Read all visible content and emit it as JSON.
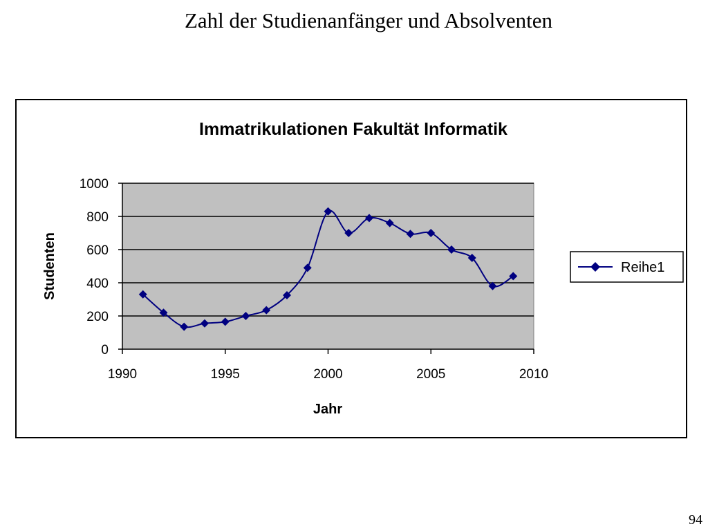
{
  "slide": {
    "title": "Zahl der Studienanfänger und Absolventen",
    "page_number": "94"
  },
  "chart_data": {
    "type": "line",
    "title": "Immatrikulationen Fakultät Informatik",
    "xlabel": "Jahr",
    "ylabel": "Studenten",
    "xlim": [
      1990,
      2010
    ],
    "ylim": [
      0,
      1000
    ],
    "x_ticks": [
      1990,
      1995,
      2000,
      2005,
      2010
    ],
    "y_ticks": [
      0,
      200,
      400,
      600,
      800,
      1000
    ],
    "grid": "horizontal",
    "legend_position": "right",
    "plot_background": "#c0c0c0",
    "line_color": "#000080",
    "marker": "diamond",
    "smoothed": true,
    "series": [
      {
        "name": "Reihe1",
        "x": [
          1991,
          1992,
          1993,
          1994,
          1995,
          1996,
          1997,
          1998,
          1999,
          2000,
          2001,
          2002,
          2003,
          2004,
          2005,
          2006,
          2007,
          2008,
          2009
        ],
        "values": [
          330,
          220,
          135,
          155,
          165,
          200,
          235,
          325,
          490,
          830,
          700,
          790,
          760,
          695,
          700,
          600,
          550,
          380,
          440
        ]
      }
    ]
  }
}
